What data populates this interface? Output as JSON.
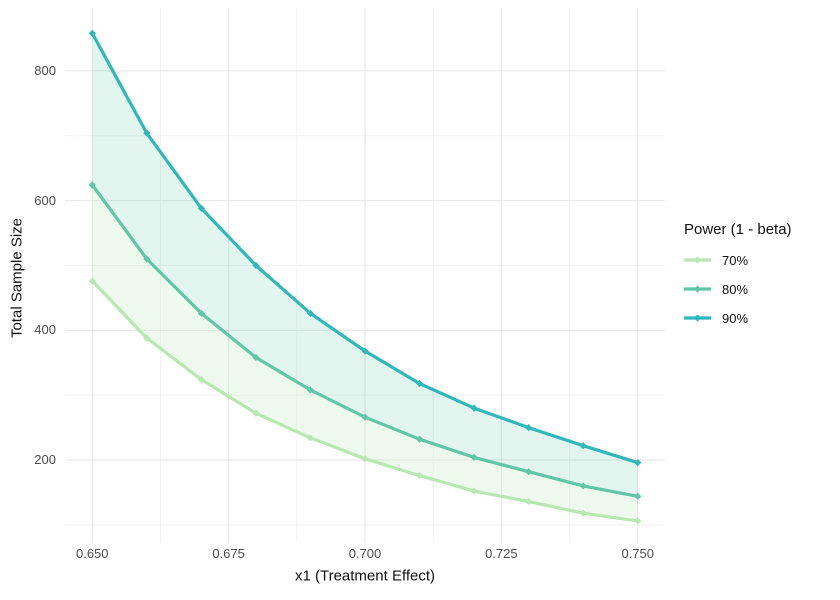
{
  "chart_data": {
    "type": "line",
    "xlabel": "x1 (Treatment Effect)",
    "ylabel": "Total Sample Size",
    "x": [
      0.65,
      0.66,
      0.67,
      0.68,
      0.69,
      0.7,
      0.71,
      0.72,
      0.73,
      0.74,
      0.75
    ],
    "series": [
      {
        "name": "70%",
        "color": "#b7e8b1",
        "values": [
          476,
          388,
          324,
          272,
          234,
          202,
          176,
          152,
          136,
          118,
          106
        ]
      },
      {
        "name": "80%",
        "color": "#5fc6a6",
        "values": [
          624,
          510,
          426,
          358,
          308,
          266,
          232,
          204,
          182,
          160,
          144
        ]
      },
      {
        "name": "90%",
        "color": "#2eb8ba",
        "values": [
          858,
          704,
          588,
          500,
          426,
          368,
          318,
          280,
          250,
          222,
          196
        ]
      }
    ],
    "bands": [
      {
        "upper": "90%",
        "lower": "80%",
        "fill": "rgba(95,198,166,0.18)"
      },
      {
        "upper": "80%",
        "lower": "70%",
        "fill": "rgba(183,232,177,0.22)"
      }
    ],
    "x_tick_values": [
      0.65,
      0.675,
      0.7,
      0.725,
      0.75
    ],
    "x_tick_labels": [
      "0.650",
      "0.675",
      "0.700",
      "0.725",
      "0.750"
    ],
    "x_minor_ticks": [
      0.6625,
      0.6875,
      0.7125,
      0.7375
    ],
    "y_tick_values": [
      200,
      400,
      600,
      800
    ],
    "y_tick_labels": [
      "200",
      "400",
      "600",
      "800"
    ],
    "y_minor_ticks": [
      100,
      300,
      500,
      700
    ],
    "xlim": [
      0.645,
      0.755
    ],
    "ylim": [
      72,
      897
    ],
    "grid": {
      "show": true,
      "major_color": "#e6e6e6",
      "minor_color": "#f2f2f2"
    },
    "legend": {
      "title": "Power (1 - beta)",
      "position": "right",
      "entries": [
        "70%",
        "80%",
        "90%"
      ]
    },
    "text_colors": {
      "tick": "#4d4d4d",
      "title": "#111111"
    }
  }
}
